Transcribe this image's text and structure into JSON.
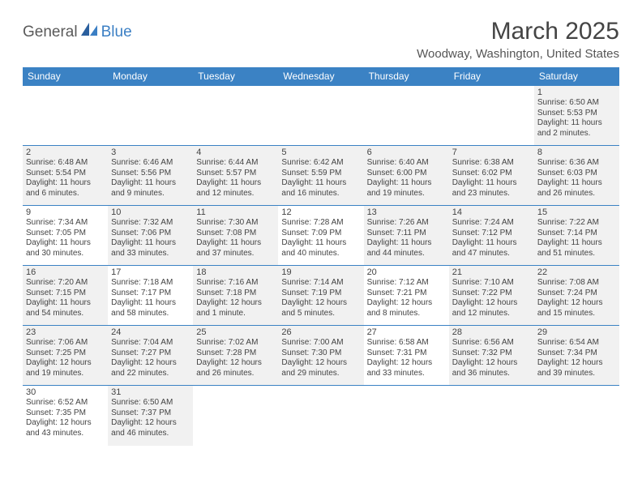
{
  "logo": {
    "word1": "General",
    "word2": "Blue"
  },
  "title": "March 2025",
  "location": "Woodway, Washington, United States",
  "colors": {
    "header_bg": "#3b82c4",
    "header_text": "#ffffff",
    "border": "#3b82c4",
    "shaded": "#f1f1f1",
    "text": "#444444",
    "logo_gray": "#5a5a5a",
    "logo_blue": "#3b7fc4"
  },
  "day_headers": [
    "Sunday",
    "Monday",
    "Tuesday",
    "Wednesday",
    "Thursday",
    "Friday",
    "Saturday"
  ],
  "weeks": [
    [
      {
        "empty": true
      },
      {
        "empty": true
      },
      {
        "empty": true
      },
      {
        "empty": true
      },
      {
        "empty": true
      },
      {
        "empty": true
      },
      {
        "d": "1",
        "sr": "Sunrise: 6:50 AM",
        "ss": "Sunset: 5:53 PM",
        "dl1": "Daylight: 11 hours",
        "dl2": "and 2 minutes.",
        "shaded": true
      }
    ],
    [
      {
        "d": "2",
        "sr": "Sunrise: 6:48 AM",
        "ss": "Sunset: 5:54 PM",
        "dl1": "Daylight: 11 hours",
        "dl2": "and 6 minutes.",
        "shaded": true
      },
      {
        "d": "3",
        "sr": "Sunrise: 6:46 AM",
        "ss": "Sunset: 5:56 PM",
        "dl1": "Daylight: 11 hours",
        "dl2": "and 9 minutes.",
        "shaded": true
      },
      {
        "d": "4",
        "sr": "Sunrise: 6:44 AM",
        "ss": "Sunset: 5:57 PM",
        "dl1": "Daylight: 11 hours",
        "dl2": "and 12 minutes.",
        "shaded": true
      },
      {
        "d": "5",
        "sr": "Sunrise: 6:42 AM",
        "ss": "Sunset: 5:59 PM",
        "dl1": "Daylight: 11 hours",
        "dl2": "and 16 minutes.",
        "shaded": true
      },
      {
        "d": "6",
        "sr": "Sunrise: 6:40 AM",
        "ss": "Sunset: 6:00 PM",
        "dl1": "Daylight: 11 hours",
        "dl2": "and 19 minutes.",
        "shaded": true
      },
      {
        "d": "7",
        "sr": "Sunrise: 6:38 AM",
        "ss": "Sunset: 6:02 PM",
        "dl1": "Daylight: 11 hours",
        "dl2": "and 23 minutes.",
        "shaded": true
      },
      {
        "d": "8",
        "sr": "Sunrise: 6:36 AM",
        "ss": "Sunset: 6:03 PM",
        "dl1": "Daylight: 11 hours",
        "dl2": "and 26 minutes.",
        "shaded": true
      }
    ],
    [
      {
        "d": "9",
        "sr": "Sunrise: 7:34 AM",
        "ss": "Sunset: 7:05 PM",
        "dl1": "Daylight: 11 hours",
        "dl2": "and 30 minutes."
      },
      {
        "d": "10",
        "sr": "Sunrise: 7:32 AM",
        "ss": "Sunset: 7:06 PM",
        "dl1": "Daylight: 11 hours",
        "dl2": "and 33 minutes.",
        "shaded": true
      },
      {
        "d": "11",
        "sr": "Sunrise: 7:30 AM",
        "ss": "Sunset: 7:08 PM",
        "dl1": "Daylight: 11 hours",
        "dl2": "and 37 minutes.",
        "shaded": true
      },
      {
        "d": "12",
        "sr": "Sunrise: 7:28 AM",
        "ss": "Sunset: 7:09 PM",
        "dl1": "Daylight: 11 hours",
        "dl2": "and 40 minutes."
      },
      {
        "d": "13",
        "sr": "Sunrise: 7:26 AM",
        "ss": "Sunset: 7:11 PM",
        "dl1": "Daylight: 11 hours",
        "dl2": "and 44 minutes.",
        "shaded": true
      },
      {
        "d": "14",
        "sr": "Sunrise: 7:24 AM",
        "ss": "Sunset: 7:12 PM",
        "dl1": "Daylight: 11 hours",
        "dl2": "and 47 minutes.",
        "shaded": true
      },
      {
        "d": "15",
        "sr": "Sunrise: 7:22 AM",
        "ss": "Sunset: 7:14 PM",
        "dl1": "Daylight: 11 hours",
        "dl2": "and 51 minutes.",
        "shaded": true
      }
    ],
    [
      {
        "d": "16",
        "sr": "Sunrise: 7:20 AM",
        "ss": "Sunset: 7:15 PM",
        "dl1": "Daylight: 11 hours",
        "dl2": "and 54 minutes.",
        "shaded": true
      },
      {
        "d": "17",
        "sr": "Sunrise: 7:18 AM",
        "ss": "Sunset: 7:17 PM",
        "dl1": "Daylight: 11 hours",
        "dl2": "and 58 minutes."
      },
      {
        "d": "18",
        "sr": "Sunrise: 7:16 AM",
        "ss": "Sunset: 7:18 PM",
        "dl1": "Daylight: 12 hours",
        "dl2": "and 1 minute.",
        "shaded": true
      },
      {
        "d": "19",
        "sr": "Sunrise: 7:14 AM",
        "ss": "Sunset: 7:19 PM",
        "dl1": "Daylight: 12 hours",
        "dl2": "and 5 minutes.",
        "shaded": true
      },
      {
        "d": "20",
        "sr": "Sunrise: 7:12 AM",
        "ss": "Sunset: 7:21 PM",
        "dl1": "Daylight: 12 hours",
        "dl2": "and 8 minutes."
      },
      {
        "d": "21",
        "sr": "Sunrise: 7:10 AM",
        "ss": "Sunset: 7:22 PM",
        "dl1": "Daylight: 12 hours",
        "dl2": "and 12 minutes.",
        "shaded": true
      },
      {
        "d": "22",
        "sr": "Sunrise: 7:08 AM",
        "ss": "Sunset: 7:24 PM",
        "dl1": "Daylight: 12 hours",
        "dl2": "and 15 minutes.",
        "shaded": true
      }
    ],
    [
      {
        "d": "23",
        "sr": "Sunrise: 7:06 AM",
        "ss": "Sunset: 7:25 PM",
        "dl1": "Daylight: 12 hours",
        "dl2": "and 19 minutes.",
        "shaded": true
      },
      {
        "d": "24",
        "sr": "Sunrise: 7:04 AM",
        "ss": "Sunset: 7:27 PM",
        "dl1": "Daylight: 12 hours",
        "dl2": "and 22 minutes.",
        "shaded": true
      },
      {
        "d": "25",
        "sr": "Sunrise: 7:02 AM",
        "ss": "Sunset: 7:28 PM",
        "dl1": "Daylight: 12 hours",
        "dl2": "and 26 minutes.",
        "shaded": true
      },
      {
        "d": "26",
        "sr": "Sunrise: 7:00 AM",
        "ss": "Sunset: 7:30 PM",
        "dl1": "Daylight: 12 hours",
        "dl2": "and 29 minutes.",
        "shaded": true
      },
      {
        "d": "27",
        "sr": "Sunrise: 6:58 AM",
        "ss": "Sunset: 7:31 PM",
        "dl1": "Daylight: 12 hours",
        "dl2": "and 33 minutes."
      },
      {
        "d": "28",
        "sr": "Sunrise: 6:56 AM",
        "ss": "Sunset: 7:32 PM",
        "dl1": "Daylight: 12 hours",
        "dl2": "and 36 minutes.",
        "shaded": true
      },
      {
        "d": "29",
        "sr": "Sunrise: 6:54 AM",
        "ss": "Sunset: 7:34 PM",
        "dl1": "Daylight: 12 hours",
        "dl2": "and 39 minutes.",
        "shaded": true
      }
    ],
    [
      {
        "d": "30",
        "sr": "Sunrise: 6:52 AM",
        "ss": "Sunset: 7:35 PM",
        "dl1": "Daylight: 12 hours",
        "dl2": "and 43 minutes."
      },
      {
        "d": "31",
        "sr": "Sunrise: 6:50 AM",
        "ss": "Sunset: 7:37 PM",
        "dl1": "Daylight: 12 hours",
        "dl2": "and 46 minutes.",
        "shaded": true
      },
      {
        "empty": true
      },
      {
        "empty": true
      },
      {
        "empty": true
      },
      {
        "empty": true
      },
      {
        "empty": true
      }
    ]
  ]
}
